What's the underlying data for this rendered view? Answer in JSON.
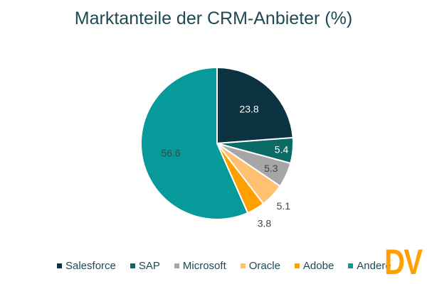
{
  "chart_data": {
    "type": "pie",
    "title": "Marktanteile der CRM-Anbieter (%)",
    "categories": [
      "Salesforce",
      "SAP",
      "Microsoft",
      "Oracle",
      "Adobe",
      "Andere"
    ],
    "values": [
      23.8,
      5.4,
      5.3,
      5.1,
      3.8,
      56.6
    ],
    "colors": [
      "#0b3341",
      "#0a6b66",
      "#a6a6a6",
      "#ffc170",
      "#ff9f00",
      "#069a9a"
    ],
    "label_colors": [
      "#ffffff",
      "#ffffff",
      "#444444",
      "#444444",
      "#444444",
      "#444444"
    ],
    "start_angle": "top",
    "direction": "clockwise",
    "legend_position": "bottom"
  },
  "watermark": "DV"
}
